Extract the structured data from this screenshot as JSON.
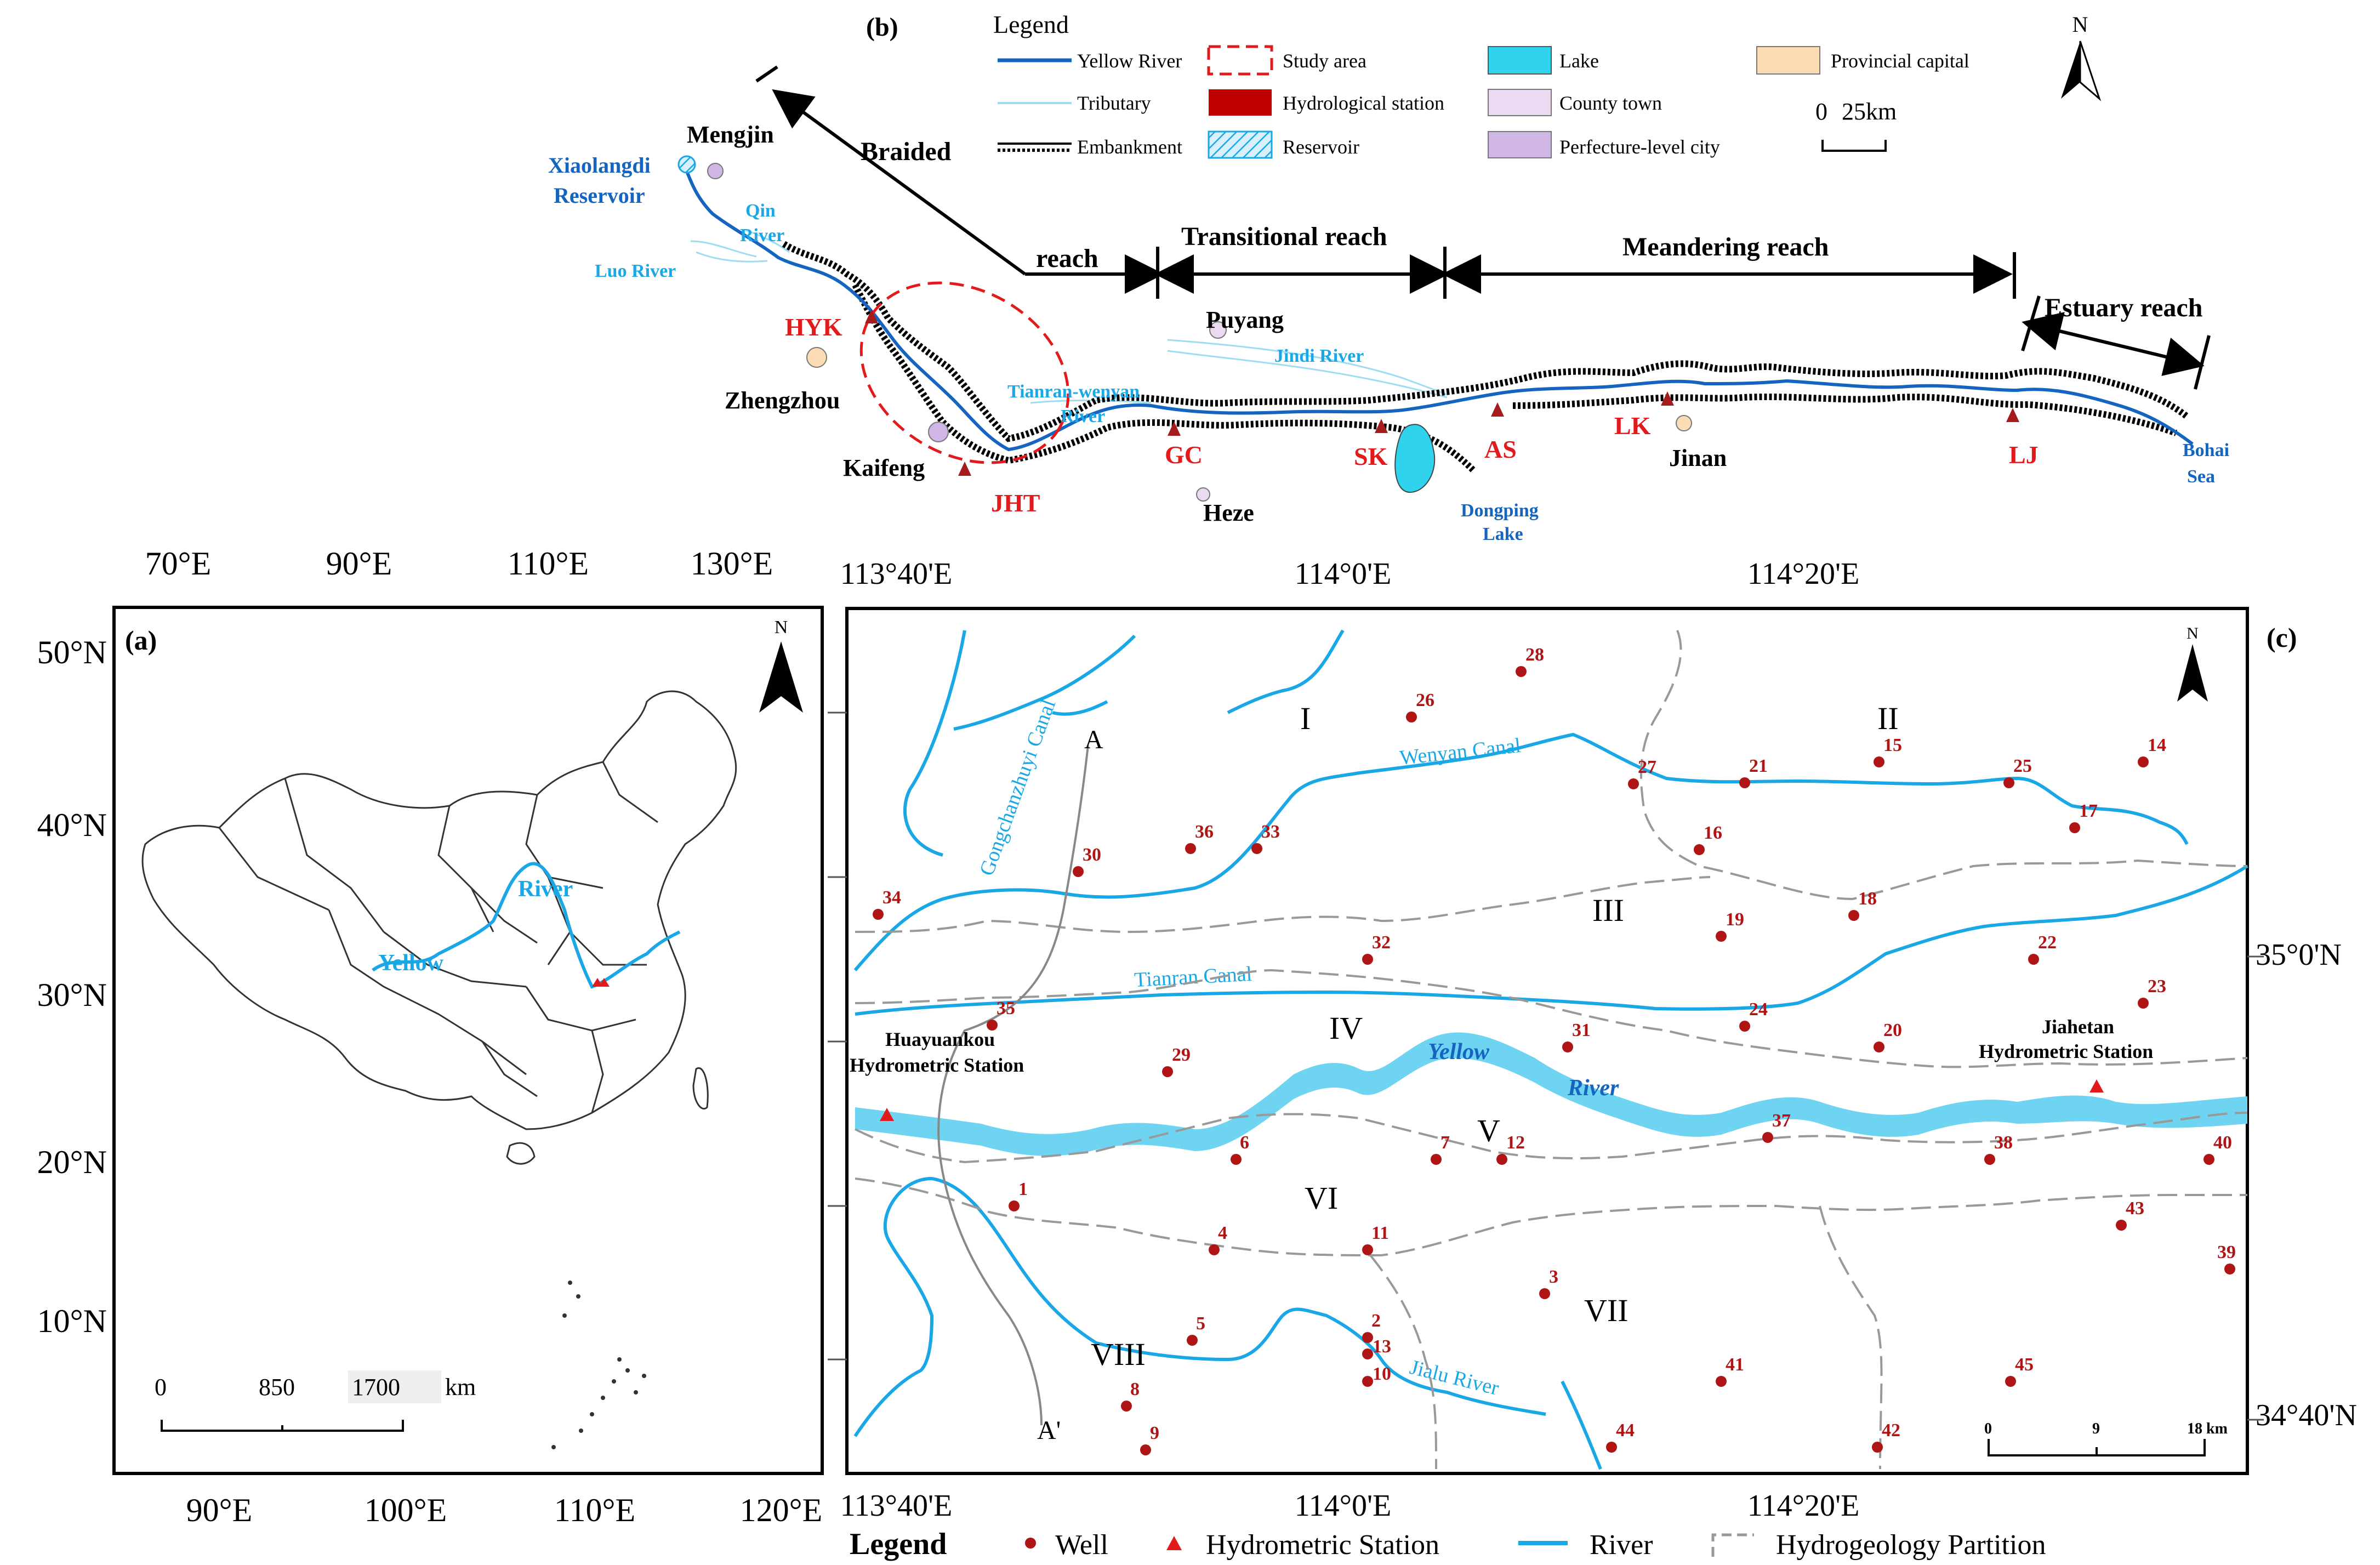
{
  "panel_b": {
    "tag": "(b)",
    "legend": {
      "title": "Legend",
      "items": [
        "Yellow River",
        "Tributary",
        "Embankment",
        "Study area",
        "Hydrological station",
        "Reservoir",
        "Lake",
        "County town",
        "Perfecture-level city",
        "Provincial capital"
      ]
    },
    "scale": {
      "zero": "0",
      "value": "25km"
    },
    "north": "N",
    "reaches": {
      "braided_1": "Braided",
      "braided_2": "reach",
      "transitional": "Transitional reach",
      "meandering": "Meandering reach",
      "estuary": "Estuary reach"
    },
    "places": {
      "xiaolangdi_1": "Xiaolangdi",
      "xiaolangdi_2": "Reservoir",
      "mengjin": "Mengjin",
      "qin_1": "Qin",
      "qin_2": "River",
      "luo": "Luo River",
      "zhengzhou": "Zhengzhou",
      "kaifeng": "Kaifeng",
      "puyang": "Puyang",
      "jindi": "Jindi River",
      "tianran_1": "Tianran-wenyan",
      "tianran_2": "River",
      "heze": "Heze",
      "dongping_1": "Dongping",
      "dongping_2": "Lake",
      "jinan": "Jinan",
      "bohai_1": "Bohai",
      "bohai_2": "Sea"
    },
    "stations": [
      "HYK",
      "JHT",
      "GC",
      "SK",
      "AS",
      "LK",
      "LJ"
    ]
  },
  "panel_a": {
    "tag": "(a)",
    "north": "N",
    "top_ticks": [
      "70°E",
      "90°E",
      "110°E",
      "130°E"
    ],
    "bottom_ticks": [
      "90°E",
      "100°E",
      "110°E",
      "120°E"
    ],
    "left_ticks": [
      "50°N",
      "40°N",
      "30°N",
      "20°N",
      "10°N"
    ],
    "river_label_1": "River",
    "river_label_2": "Yellow",
    "scale": {
      "a": "0",
      "b": "850",
      "c": "1700",
      "unit": "km"
    }
  },
  "panel_c": {
    "tag": "(c)",
    "north": "N",
    "top_ticks": [
      "113°40'E",
      "114°0'E",
      "114°20'E"
    ],
    "bottom_ticks": [
      "113°40'E",
      "114°0'E",
      "114°20'E"
    ],
    "right_ticks": [
      "35°0'N",
      "34°40'N"
    ],
    "zones": [
      "I",
      "II",
      "III",
      "IV",
      "V",
      "VI",
      "VII",
      "VIII"
    ],
    "section": {
      "a": "A",
      "b": "A'"
    },
    "canals": {
      "gongchanzhuyi": "Gongchanzhuyi Canal",
      "wenyan": "Wenyan Canal",
      "tianran": "Tianran Canal",
      "jialu": "Jialu River"
    },
    "yellow_1": "Yellow",
    "yellow_2": "River",
    "huayuankou_1": "Huayuankou",
    "huayuankou_2": "Hydrometric Station",
    "jiahetan_1": "Jiahetan",
    "jiahetan_2": "Hydrometric Station",
    "scale": {
      "a": "0",
      "b": "9",
      "c": "18 km"
    },
    "wells": [
      "1",
      "2",
      "3",
      "4",
      "5",
      "6",
      "7",
      "8",
      "9",
      "10",
      "11",
      "12",
      "13",
      "14",
      "15",
      "16",
      "17",
      "18",
      "19",
      "20",
      "21",
      "22",
      "23",
      "24",
      "25",
      "26",
      "27",
      "28",
      "29",
      "30",
      "31",
      "32",
      "33",
      "34",
      "35",
      "36",
      "37",
      "38",
      "39",
      "40",
      "41",
      "42",
      "43",
      "44",
      "45"
    ],
    "legend": {
      "title": "Legend",
      "well": "Well",
      "station": "Hydrometric Station",
      "river": "River",
      "partition": "Hydrogeology Partition"
    }
  },
  "colors": {
    "river": "#1aa7e6",
    "yellow_river": "#1565c0",
    "station_red": "#e31a1c",
    "well": "#b01515",
    "lake": "#2fd3ee"
  }
}
